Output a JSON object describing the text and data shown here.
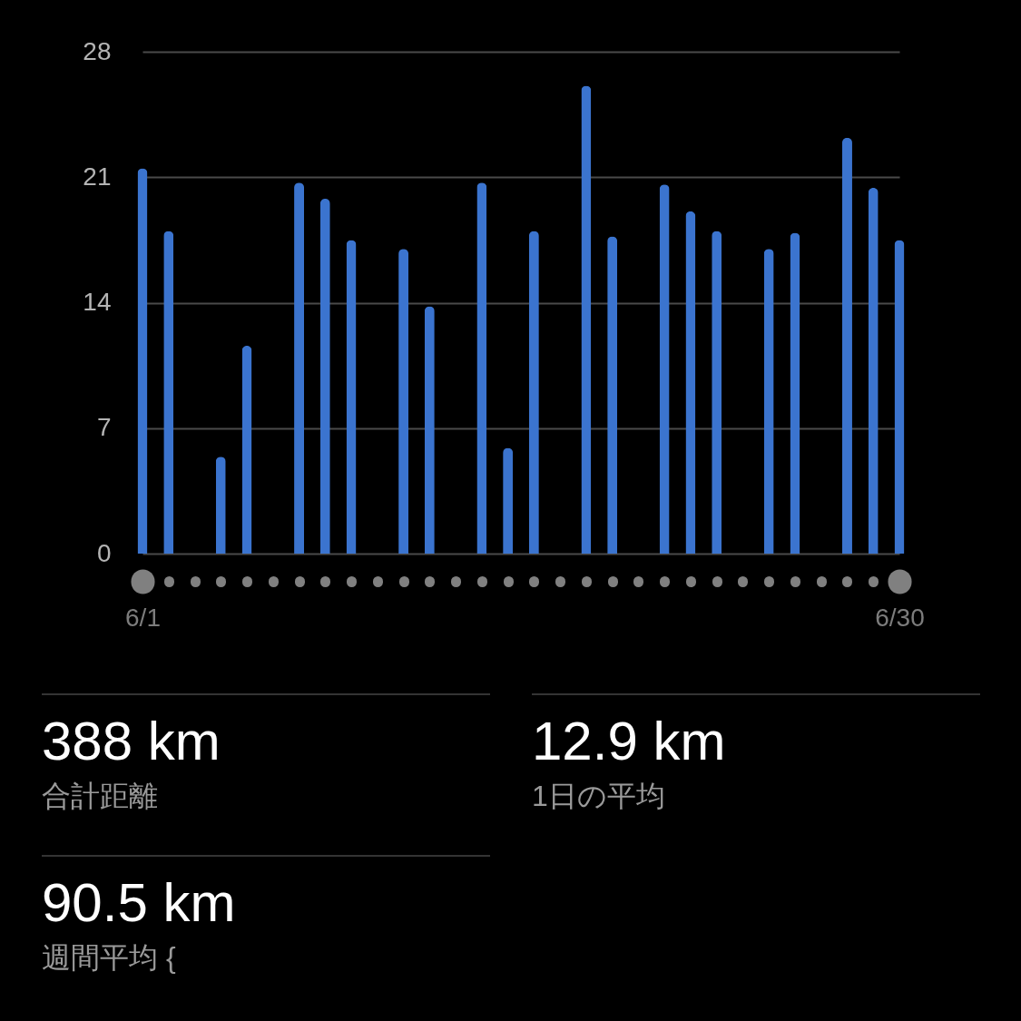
{
  "chart_data": {
    "type": "bar",
    "categories": [
      "6/1",
      null,
      null,
      null,
      null,
      null,
      null,
      null,
      null,
      null,
      null,
      null,
      null,
      null,
      null,
      null,
      null,
      null,
      null,
      null,
      null,
      null,
      null,
      null,
      null,
      null,
      null,
      null,
      null,
      "6/30"
    ],
    "values": [
      21.5,
      18.0,
      0,
      5.4,
      11.6,
      0,
      20.7,
      19.8,
      17.5,
      0,
      17.0,
      13.8,
      0,
      20.7,
      5.9,
      18.0,
      0,
      26.1,
      17.7,
      0,
      20.6,
      19.1,
      18.0,
      0,
      17.0,
      17.9,
      0,
      23.2,
      20.4,
      17.5
    ],
    "color": "#3b74cf",
    "ylim": [
      0,
      28
    ],
    "yticks": [
      0,
      7,
      14,
      21,
      28
    ],
    "grid": "y",
    "annotations": [
      "388 km",
      "合計距離",
      "12.9 km",
      "1日の平均",
      "90.5 km",
      "週間平均 {"
    ]
  }
}
